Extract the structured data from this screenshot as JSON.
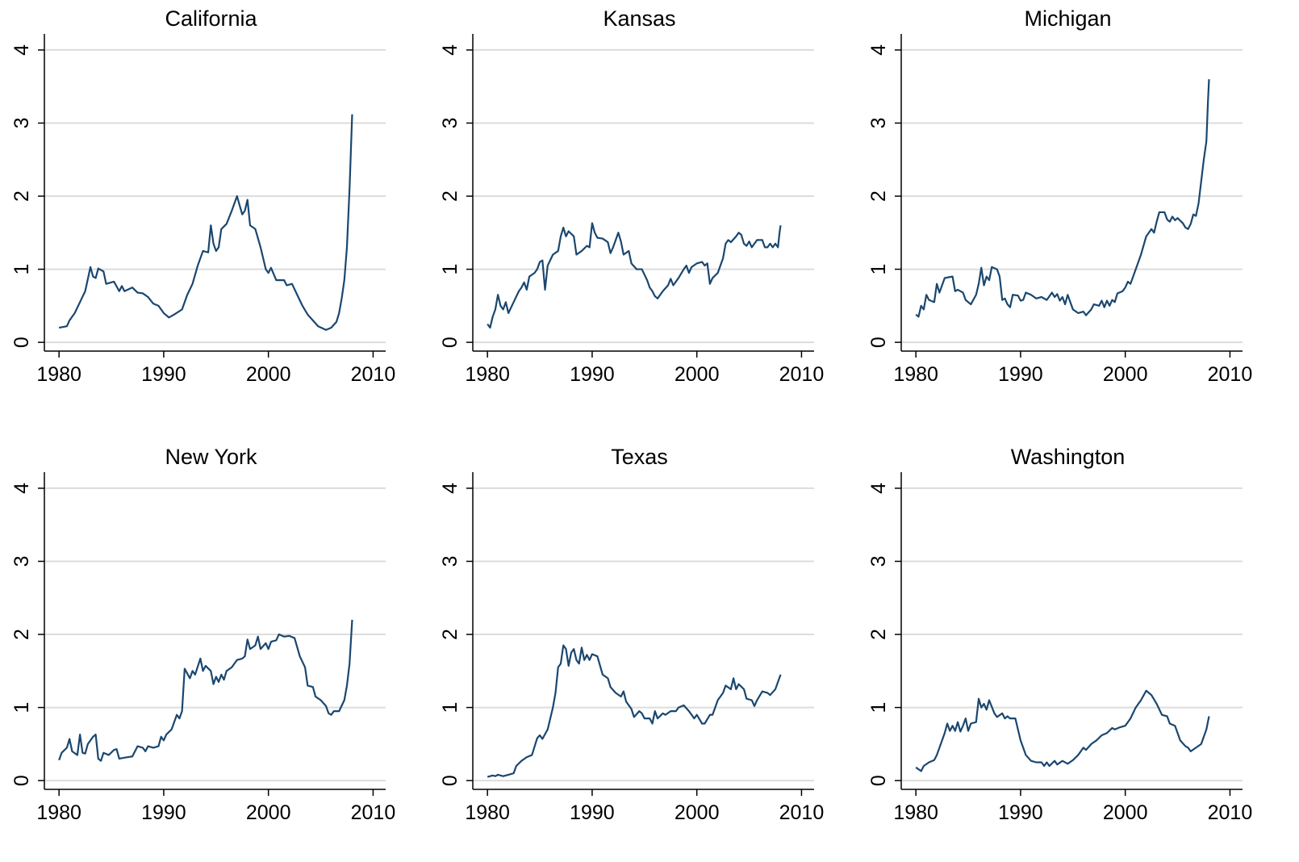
{
  "chart_data": [
    {
      "type": "line",
      "title": "California",
      "color": "#1a476f",
      "grid": true,
      "xlim": [
        1978.6,
        2011.2
      ],
      "ylim": [
        -0.12,
        4.22
      ],
      "xticks": [
        1980,
        1990,
        2000,
        2010
      ],
      "yticks": [
        0,
        1,
        2,
        3,
        4
      ],
      "x": [
        1980,
        1980.75,
        1981,
        1981.5,
        1982,
        1982.5,
        1983,
        1983.25,
        1983.5,
        1983.75,
        1984.25,
        1984.5,
        1985.25,
        1985.75,
        1986,
        1986.25,
        1987,
        1987.5,
        1988,
        1988.5,
        1989,
        1989.5,
        1990,
        1990.5,
        1991,
        1991.75,
        1992.25,
        1992.75,
        1993.25,
        1993.75,
        1994.25,
        1994.5,
        1994.75,
        1995,
        1995.25,
        1995.5,
        1996,
        1996.5,
        1997,
        1997.5,
        1997.75,
        1998,
        1998.25,
        1998.75,
        1999.25,
        1999.75,
        2000,
        2000.25,
        2000.75,
        2001.5,
        2001.75,
        2002.25,
        2002.75,
        2003.25,
        2003.75,
        2004.25,
        2004.75,
        2005.5,
        2006,
        2006.5,
        2006.75,
        2007,
        2007.25,
        2007.5,
        2007.75,
        2008
      ],
      "values": [
        0.2,
        0.22,
        0.3,
        0.4,
        0.55,
        0.7,
        1.03,
        0.9,
        0.88,
        1.01,
        0.97,
        0.8,
        0.83,
        0.7,
        0.77,
        0.7,
        0.75,
        0.68,
        0.67,
        0.62,
        0.53,
        0.5,
        0.4,
        0.34,
        0.38,
        0.45,
        0.65,
        0.8,
        1.05,
        1.25,
        1.23,
        1.6,
        1.35,
        1.25,
        1.3,
        1.55,
        1.62,
        1.8,
        2.0,
        1.75,
        1.8,
        1.95,
        1.6,
        1.55,
        1.3,
        1.0,
        0.95,
        1.02,
        0.85,
        0.85,
        0.78,
        0.8,
        0.65,
        0.5,
        0.38,
        0.3,
        0.22,
        0.17,
        0.2,
        0.28,
        0.4,
        0.6,
        0.85,
        1.3,
        2.1,
        3.12
      ]
    },
    {
      "type": "line",
      "title": "Kansas",
      "color": "#1a476f",
      "grid": true,
      "xlim": [
        1978.6,
        2011.2
      ],
      "ylim": [
        -0.12,
        4.22
      ],
      "xticks": [
        1980,
        1990,
        2000,
        2010
      ],
      "yticks": [
        0,
        1,
        2,
        3,
        4
      ],
      "x": [
        1980,
        1980.25,
        1980.5,
        1980.75,
        1981,
        1981.25,
        1981.5,
        1981.75,
        1982,
        1982.5,
        1983,
        1983.25,
        1983.5,
        1983.75,
        1984,
        1984.5,
        1984.75,
        1985,
        1985.25,
        1985.5,
        1985.75,
        1986.25,
        1986.75,
        1987,
        1987.25,
        1987.5,
        1987.75,
        1988.25,
        1988.5,
        1989,
        1989.5,
        1989.75,
        1990,
        1990.25,
        1990.5,
        1991,
        1991.5,
        1991.75,
        1992,
        1992.5,
        1992.75,
        1993,
        1993.5,
        1993.75,
        1994.25,
        1994.75,
        1995.25,
        1995.5,
        1995.75,
        1996,
        1996.25,
        1996.75,
        1997.25,
        1997.5,
        1997.75,
        1998.25,
        1998.75,
        1999,
        1999.25,
        1999.5,
        2000,
        2000.5,
        2000.75,
        2001,
        2001.25,
        2001.5,
        2002,
        2002.5,
        2002.75,
        2003,
        2003.25,
        2003.75,
        2004,
        2004.25,
        2004.5,
        2004.75,
        2005,
        2005.25,
        2005.75,
        2006.25,
        2006.5,
        2006.75,
        2007,
        2007.25,
        2007.5,
        2007.75,
        2007.9,
        2008
      ],
      "values": [
        0.25,
        0.2,
        0.35,
        0.45,
        0.65,
        0.5,
        0.45,
        0.55,
        0.4,
        0.55,
        0.7,
        0.75,
        0.82,
        0.72,
        0.9,
        0.95,
        1.0,
        1.1,
        1.12,
        0.72,
        1.05,
        1.2,
        1.25,
        1.45,
        1.57,
        1.45,
        1.52,
        1.45,
        1.2,
        1.25,
        1.32,
        1.3,
        1.63,
        1.5,
        1.43,
        1.42,
        1.37,
        1.22,
        1.3,
        1.5,
        1.38,
        1.2,
        1.25,
        1.08,
        1.0,
        1.0,
        0.85,
        0.75,
        0.7,
        0.63,
        0.6,
        0.7,
        0.78,
        0.87,
        0.78,
        0.88,
        1.0,
        1.05,
        0.95,
        1.03,
        1.08,
        1.1,
        1.05,
        1.08,
        0.8,
        0.88,
        0.95,
        1.15,
        1.35,
        1.4,
        1.37,
        1.45,
        1.5,
        1.47,
        1.35,
        1.32,
        1.38,
        1.3,
        1.4,
        1.4,
        1.3,
        1.3,
        1.35,
        1.3,
        1.35,
        1.3,
        1.5,
        1.6
      ]
    },
    {
      "type": "line",
      "title": "Michigan",
      "color": "#1a476f",
      "grid": true,
      "xlim": [
        1978.6,
        2011.2
      ],
      "ylim": [
        -0.12,
        4.22
      ],
      "xticks": [
        1980,
        1990,
        2000,
        2010
      ],
      "yticks": [
        0,
        1,
        2,
        3,
        4
      ],
      "x": [
        1980,
        1980.25,
        1980.5,
        1980.75,
        1981,
        1981.25,
        1981.75,
        1982,
        1982.25,
        1982.5,
        1982.75,
        1983.5,
        1983.75,
        1984,
        1984.5,
        1984.75,
        1985.25,
        1985.75,
        1986,
        1986.25,
        1986.5,
        1986.75,
        1987,
        1987.25,
        1987.75,
        1988,
        1988.25,
        1988.5,
        1988.75,
        1989,
        1989.25,
        1989.75,
        1990,
        1990.25,
        1990.5,
        1991,
        1991.5,
        1992,
        1992.5,
        1993,
        1993.25,
        1993.5,
        1993.75,
        1994,
        1994.25,
        1994.5,
        1994.75,
        1995,
        1995.5,
        1996,
        1996.25,
        1996.75,
        1997,
        1997.5,
        1997.75,
        1998,
        1998.25,
        1998.5,
        1998.75,
        1999,
        1999.25,
        1999.75,
        2000,
        2000.25,
        2000.5,
        2001,
        2001.5,
        2002,
        2002.5,
        2002.75,
        2003,
        2003.25,
        2003.75,
        2004,
        2004.25,
        2004.5,
        2004.75,
        2005,
        2005.5,
        2005.75,
        2006,
        2006.25,
        2006.5,
        2006.75,
        2007,
        2007.25,
        2007.5,
        2007.75,
        2007.9,
        2008
      ],
      "values": [
        0.38,
        0.35,
        0.5,
        0.45,
        0.65,
        0.58,
        0.55,
        0.8,
        0.68,
        0.78,
        0.88,
        0.9,
        0.7,
        0.72,
        0.68,
        0.58,
        0.52,
        0.65,
        0.8,
        1.02,
        0.78,
        0.9,
        0.85,
        1.03,
        1.0,
        0.9,
        0.58,
        0.6,
        0.52,
        0.48,
        0.65,
        0.64,
        0.57,
        0.58,
        0.68,
        0.65,
        0.6,
        0.62,
        0.58,
        0.68,
        0.62,
        0.66,
        0.57,
        0.62,
        0.52,
        0.65,
        0.55,
        0.45,
        0.4,
        0.42,
        0.37,
        0.45,
        0.52,
        0.5,
        0.57,
        0.48,
        0.57,
        0.5,
        0.58,
        0.55,
        0.67,
        0.7,
        0.75,
        0.83,
        0.8,
        1.0,
        1.2,
        1.45,
        1.55,
        1.5,
        1.65,
        1.78,
        1.78,
        1.68,
        1.65,
        1.72,
        1.67,
        1.7,
        1.63,
        1.57,
        1.55,
        1.62,
        1.75,
        1.73,
        1.9,
        2.2,
        2.5,
        2.75,
        3.3,
        3.6
      ]
    },
    {
      "type": "line",
      "title": "New York",
      "color": "#1a476f",
      "grid": true,
      "xlim": [
        1978.6,
        2011.2
      ],
      "ylim": [
        -0.12,
        4.22
      ],
      "xticks": [
        1980,
        1990,
        2000,
        2010
      ],
      "yticks": [
        0,
        1,
        2,
        3,
        4
      ],
      "x": [
        1980,
        1980.25,
        1980.75,
        1981,
        1981.25,
        1981.75,
        1982,
        1982.25,
        1982.5,
        1982.75,
        1983.25,
        1983.5,
        1983.75,
        1984,
        1984.25,
        1984.75,
        1985.25,
        1985.5,
        1985.75,
        1986.5,
        1987,
        1987.5,
        1988,
        1988.25,
        1988.5,
        1989,
        1989.5,
        1989.75,
        1990,
        1990.25,
        1990.75,
        1991.25,
        1991.5,
        1991.75,
        1992,
        1992.5,
        1992.75,
        1993,
        1993.5,
        1993.75,
        1994,
        1994.5,
        1994.75,
        1995,
        1995.25,
        1995.5,
        1995.75,
        1996,
        1996.5,
        1997,
        1997.5,
        1997.75,
        1998,
        1998.25,
        1998.75,
        1999,
        1999.25,
        1999.75,
        2000,
        2000.25,
        2000.75,
        2001,
        2001.5,
        2002,
        2002.5,
        2003,
        2003.5,
        2003.75,
        2004.25,
        2004.5,
        2005,
        2005.5,
        2005.75,
        2006,
        2006.25,
        2006.75,
        2007.25,
        2007.5,
        2007.75,
        2008
      ],
      "values": [
        0.28,
        0.38,
        0.45,
        0.57,
        0.4,
        0.35,
        0.63,
        0.38,
        0.37,
        0.5,
        0.6,
        0.63,
        0.3,
        0.27,
        0.38,
        0.35,
        0.42,
        0.43,
        0.3,
        0.32,
        0.33,
        0.47,
        0.45,
        0.4,
        0.47,
        0.45,
        0.47,
        0.6,
        0.55,
        0.63,
        0.7,
        0.9,
        0.85,
        0.95,
        1.53,
        1.4,
        1.5,
        1.45,
        1.67,
        1.5,
        1.57,
        1.5,
        1.32,
        1.42,
        1.35,
        1.45,
        1.38,
        1.5,
        1.55,
        1.65,
        1.67,
        1.7,
        1.93,
        1.8,
        1.85,
        1.97,
        1.8,
        1.88,
        1.8,
        1.9,
        1.92,
        2.0,
        1.97,
        1.98,
        1.95,
        1.7,
        1.55,
        1.3,
        1.28,
        1.15,
        1.1,
        1.02,
        0.92,
        0.9,
        0.95,
        0.95,
        1.1,
        1.3,
        1.6,
        2.2
      ]
    },
    {
      "type": "line",
      "title": "Texas",
      "color": "#1a476f",
      "grid": true,
      "xlim": [
        1978.6,
        2011.2
      ],
      "ylim": [
        -0.12,
        4.22
      ],
      "xticks": [
        1980,
        1990,
        2000,
        2010
      ],
      "yticks": [
        0,
        1,
        2,
        3,
        4
      ],
      "x": [
        1980,
        1980.5,
        1980.75,
        1981,
        1981.5,
        1982,
        1982.5,
        1982.75,
        1983.25,
        1983.75,
        1984.25,
        1984.75,
        1985,
        1985.25,
        1985.75,
        1986.25,
        1986.5,
        1986.75,
        1987,
        1987.25,
        1987.5,
        1987.75,
        1988,
        1988.25,
        1988.5,
        1988.75,
        1989,
        1989.25,
        1989.5,
        1989.75,
        1990,
        1990.5,
        1991,
        1991.5,
        1991.75,
        1992.25,
        1992.75,
        1993,
        1993.25,
        1993.75,
        1994,
        1994.5,
        1994.75,
        1995,
        1995.5,
        1995.75,
        1996,
        1996.25,
        1996.75,
        1997,
        1997.5,
        1998,
        1998.25,
        1998.75,
        1999.25,
        1999.75,
        2000,
        2000.5,
        2000.75,
        2001.25,
        2001.5,
        2002,
        2002.5,
        2002.75,
        2003.25,
        2003.5,
        2003.75,
        2004,
        2004.5,
        2004.75,
        2005.25,
        2005.5,
        2005.75,
        2006.25,
        2006.75,
        2007,
        2007.5,
        2007.75,
        2008
      ],
      "values": [
        0.05,
        0.07,
        0.06,
        0.08,
        0.06,
        0.08,
        0.1,
        0.2,
        0.27,
        0.32,
        0.35,
        0.58,
        0.62,
        0.57,
        0.7,
        1.0,
        1.2,
        1.55,
        1.6,
        1.85,
        1.8,
        1.57,
        1.75,
        1.8,
        1.65,
        1.6,
        1.82,
        1.65,
        1.72,
        1.65,
        1.73,
        1.7,
        1.45,
        1.4,
        1.28,
        1.2,
        1.15,
        1.22,
        1.08,
        0.98,
        0.87,
        0.95,
        0.92,
        0.85,
        0.85,
        0.78,
        0.95,
        0.85,
        0.92,
        0.9,
        0.95,
        0.95,
        1.0,
        1.03,
        0.95,
        0.85,
        0.9,
        0.78,
        0.78,
        0.9,
        0.9,
        1.1,
        1.2,
        1.3,
        1.25,
        1.4,
        1.25,
        1.32,
        1.25,
        1.12,
        1.1,
        1.02,
        1.1,
        1.22,
        1.2,
        1.17,
        1.25,
        1.35,
        1.45
      ]
    },
    {
      "type": "line",
      "title": "Washington",
      "color": "#1a476f",
      "grid": true,
      "xlim": [
        1978.6,
        2011.2
      ],
      "ylim": [
        -0.12,
        4.22
      ],
      "xticks": [
        1980,
        1990,
        2000,
        2010
      ],
      "yticks": [
        0,
        1,
        2,
        3,
        4
      ],
      "x": [
        1980,
        1980.5,
        1980.75,
        1981.25,
        1981.75,
        1982,
        1982.5,
        1982.75,
        1983,
        1983.25,
        1983.5,
        1983.75,
        1984,
        1984.25,
        1984.5,
        1984.75,
        1985,
        1985.25,
        1985.75,
        1986,
        1986.25,
        1986.5,
        1986.75,
        1987,
        1987.5,
        1987.75,
        1988.25,
        1988.5,
        1988.75,
        1989,
        1989.5,
        1990,
        1990.5,
        1991,
        1991.5,
        1992,
        1992.25,
        1992.5,
        1992.75,
        1993.25,
        1993.5,
        1994,
        1994.5,
        1995,
        1995.5,
        1996,
        1996.25,
        1996.75,
        1997.25,
        1997.75,
        1998.25,
        1998.75,
        1999,
        1999.5,
        2000,
        2000.5,
        2001,
        2001.5,
        2002,
        2002.5,
        2003,
        2003.5,
        2004,
        2004.25,
        2004.75,
        2005.25,
        2005.75,
        2006,
        2006.25,
        2006.75,
        2007.25,
        2007.75,
        2008
      ],
      "values": [
        0.18,
        0.13,
        0.2,
        0.25,
        0.28,
        0.35,
        0.55,
        0.65,
        0.78,
        0.68,
        0.75,
        0.68,
        0.8,
        0.67,
        0.75,
        0.85,
        0.68,
        0.78,
        0.8,
        1.12,
        1.0,
        1.05,
        0.97,
        1.1,
        0.92,
        0.87,
        0.92,
        0.85,
        0.88,
        0.85,
        0.85,
        0.55,
        0.35,
        0.27,
        0.25,
        0.25,
        0.2,
        0.25,
        0.2,
        0.27,
        0.22,
        0.27,
        0.23,
        0.28,
        0.35,
        0.45,
        0.42,
        0.5,
        0.55,
        0.62,
        0.65,
        0.72,
        0.7,
        0.73,
        0.75,
        0.85,
        1.0,
        1.1,
        1.23,
        1.17,
        1.05,
        0.9,
        0.88,
        0.78,
        0.75,
        0.55,
        0.47,
        0.45,
        0.4,
        0.45,
        0.5,
        0.7,
        0.88
      ]
    }
  ]
}
